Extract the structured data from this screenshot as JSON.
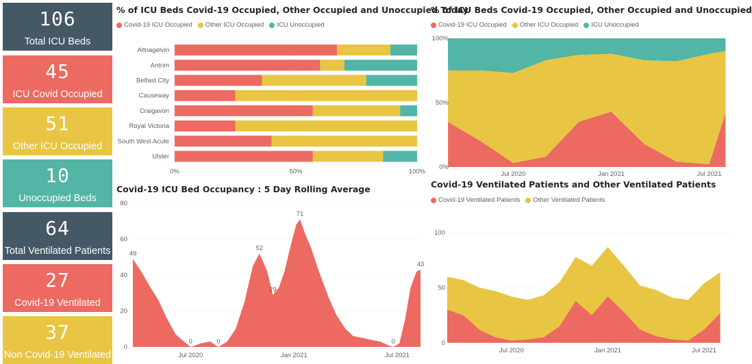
{
  "colors": {
    "covid": "#ec6a61",
    "other": "#e8c542",
    "unoccupied": "#52b5a5",
    "dark": "#455866"
  },
  "kpis": [
    {
      "value": "106",
      "label": "Total ICU Beds",
      "color": "#455866"
    },
    {
      "value": "45",
      "label": "ICU Covid Occupied",
      "color": "#ec6a61"
    },
    {
      "value": "51",
      "label": "Other ICU Occupied",
      "color": "#e8c542"
    },
    {
      "value": "10",
      "label": "Unoccupied Beds",
      "color": "#52b5a5"
    },
    {
      "value": "64",
      "label": "Total Ventilated Patients",
      "color": "#455866"
    },
    {
      "value": "27",
      "label": "Covid-19 Ventilated",
      "color": "#ec6a61"
    },
    {
      "value": "37",
      "label": "Non Covid-19 Ventilated",
      "color": "#e8c542"
    }
  ],
  "chart_data": [
    {
      "type": "bar",
      "orientation": "horizontal-stacked-100",
      "title": "% of ICU Beds Covid-19 Occupied, Other Occupied and Unoccupied Today",
      "legend": [
        "Covid-19 ICU Occupied",
        "Other ICU Occupied",
        "ICU Unoccupied"
      ],
      "categories": [
        "Altnagelvin",
        "Antrim",
        "Belfast City",
        "Causeway",
        "Craigavon",
        "Royal Victoria",
        "South West Acute",
        "Ulster"
      ],
      "series": [
        {
          "name": "Covid-19 ICU Occupied",
          "values": [
            67,
            60,
            36,
            25,
            57,
            25,
            40,
            57
          ]
        },
        {
          "name": "Other ICU Occupied",
          "values": [
            22,
            10,
            43,
            75,
            36,
            75,
            60,
            29
          ]
        },
        {
          "name": "ICU Unoccupied",
          "values": [
            11,
            30,
            21,
            0,
            7,
            0,
            0,
            14
          ]
        }
      ],
      "xticks": [
        "0%",
        "50%",
        "100%"
      ]
    },
    {
      "type": "area",
      "stacking": "100%",
      "title": "% of ICU Beds Covid-19 Occupied, Other Occupied and Unoccupied",
      "legend": [
        "Covid-19 ICU Occupied",
        "Other ICU Occupied",
        "ICU Unoccupied"
      ],
      "yticks": [
        "0%",
        "50%",
        "100%"
      ],
      "xticks": [
        "Jul 2020",
        "Jan 2021",
        "Jul 2021"
      ],
      "x": [
        "2020-03",
        "2020-05",
        "2020-07",
        "2020-09",
        "2020-11",
        "2021-01",
        "2021-03",
        "2021-05",
        "2021-07",
        "2021-08"
      ],
      "series": [
        {
          "name": "Covid-19 ICU Occupied",
          "values": [
            35,
            20,
            3,
            8,
            35,
            43,
            18,
            4,
            2,
            42
          ]
        },
        {
          "name": "Other ICU Occupied",
          "values": [
            40,
            55,
            70,
            75,
            52,
            45,
            65,
            78,
            86,
            48
          ]
        },
        {
          "name": "ICU Unoccupied",
          "values": [
            25,
            25,
            27,
            17,
            13,
            12,
            17,
            18,
            12,
            10
          ]
        }
      ]
    },
    {
      "type": "area",
      "title": "Covid-19 ICU Bed Occupancy : 5 Day Rolling Average",
      "yticks": [
        "0",
        "20",
        "40",
        "60",
        "80"
      ],
      "ylim": [
        0,
        80
      ],
      "xticks": [
        "Jul 2020",
        "Jan 2021",
        "Jul 2021"
      ],
      "x": [
        "2020-03-21",
        "2020-04-05",
        "2020-04-20",
        "2020-05-05",
        "2020-05-20",
        "2020-06-05",
        "2020-06-20",
        "2020-07-01",
        "2020-07-20",
        "2020-08-05",
        "2020-08-20",
        "2020-09-05",
        "2020-09-20",
        "2020-10-05",
        "2020-10-20",
        "2020-11-01",
        "2020-11-15",
        "2020-11-25",
        "2020-12-05",
        "2020-12-15",
        "2020-12-25",
        "2021-01-05",
        "2021-01-12",
        "2021-01-20",
        "2021-02-01",
        "2021-02-15",
        "2021-03-01",
        "2021-03-15",
        "2021-04-01",
        "2021-04-15",
        "2021-05-01",
        "2021-05-15",
        "2021-06-01",
        "2021-06-15",
        "2021-06-25",
        "2021-07-05",
        "2021-07-15",
        "2021-07-25",
        "2021-08-05",
        "2021-08-12"
      ],
      "values": [
        49,
        42,
        34,
        26,
        16,
        7,
        3,
        0,
        2,
        3,
        0,
        3,
        10,
        25,
        45,
        52,
        42,
        29,
        33,
        42,
        55,
        68,
        71,
        64,
        55,
        42,
        28,
        18,
        10,
        6,
        5,
        4,
        3,
        1,
        0,
        2,
        15,
        33,
        42,
        43
      ],
      "data_labels": [
        {
          "x": "2020-03-21",
          "value": "49"
        },
        {
          "x": "2020-07-01",
          "value": "0"
        },
        {
          "x": "2020-08-20",
          "value": "0"
        },
        {
          "x": "2020-11-01",
          "value": "52"
        },
        {
          "x": "2020-11-25",
          "value": "29"
        },
        {
          "x": "2021-01-12",
          "value": "71"
        },
        {
          "x": "2021-06-25",
          "value": "0"
        },
        {
          "x": "2021-08-12",
          "value": "43"
        }
      ]
    },
    {
      "type": "area",
      "stacking": "stacked",
      "title": "Covid-19 Ventilated Patients and Other Ventilated Patients",
      "legend": [
        "Covid-19 Ventilated Patients",
        "Other Ventilated Patients"
      ],
      "yticks": [
        "0",
        "50",
        "100"
      ],
      "ylim": [
        0,
        110
      ],
      "xticks": [
        "Jul 2020",
        "Jan 2021",
        "Jul 2021"
      ],
      "x": [
        "2020-03",
        "2020-04",
        "2020-05",
        "2020-06",
        "2020-07",
        "2020-08",
        "2020-09",
        "2020-10",
        "2020-11",
        "2020-12",
        "2021-01",
        "2021-02",
        "2021-03",
        "2021-04",
        "2021-05",
        "2021-06",
        "2021-07",
        "2021-08"
      ],
      "series": [
        {
          "name": "Covid-19 Ventilated Patients",
          "values": [
            30,
            25,
            12,
            5,
            2,
            3,
            5,
            15,
            38,
            25,
            42,
            28,
            12,
            6,
            3,
            2,
            12,
            27
          ]
        },
        {
          "name": "Other Ventilated Patients",
          "values": [
            30,
            32,
            38,
            42,
            40,
            36,
            38,
            40,
            40,
            45,
            45,
            42,
            40,
            42,
            38,
            37,
            42,
            37
          ]
        }
      ]
    }
  ]
}
